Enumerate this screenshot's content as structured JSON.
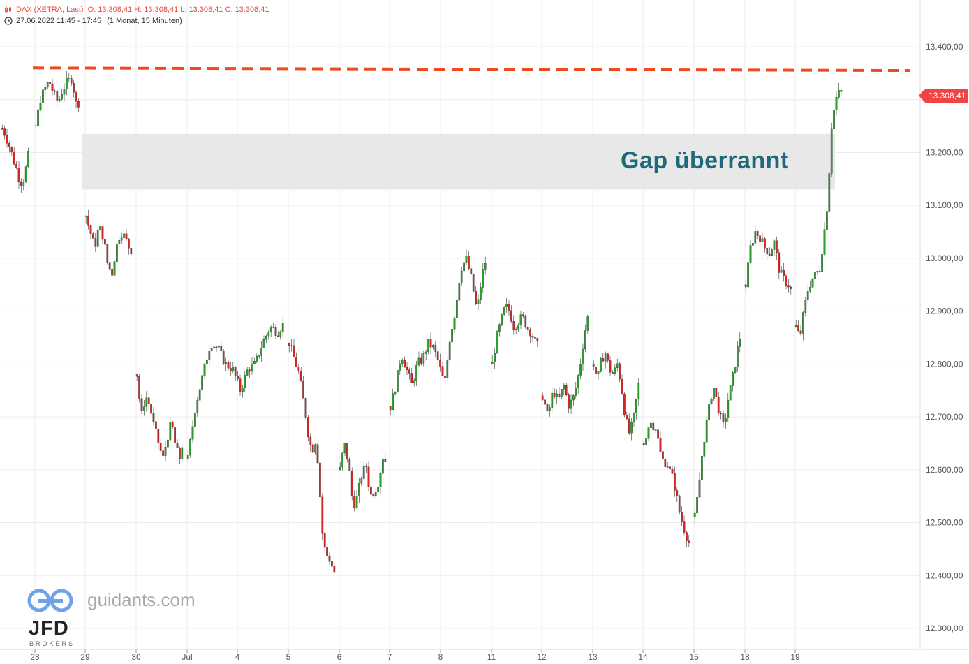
{
  "header": {
    "title": "DAX (XETRA, Last)",
    "ohlc": "O: 13.308,41  H: 13.308,41  L: 13.308,41  C: 13.308,41",
    "range": "27.06.2022 11:45 - 17:45",
    "interval": "(1 Monat, 15 Minuten)"
  },
  "annotation": {
    "text": "Gap überrannt"
  },
  "last_price_label": "13.308,41",
  "branding": {
    "site": "guidants.com",
    "broker": "JFD",
    "broker_sub": "BROKERS"
  },
  "colors": {
    "up": "#2ca02c",
    "down": "#d62728",
    "resistance": "#f04a1f",
    "gap_zone": "#e8e8e8",
    "annotation": "#1f6a7a",
    "grid": "#ececec",
    "axis_text": "#555555"
  },
  "chart_data": {
    "type": "candlestick",
    "x_tick_labels": [
      "28",
      "29",
      "30",
      "Jul",
      "4",
      "5",
      "6",
      "7",
      "8",
      "11",
      "12",
      "13",
      "14",
      "15",
      "18",
      "19"
    ],
    "y_tick_labels": [
      "13.400,00",
      "13.300,00",
      "13.200,00",
      "13.100,00",
      "13.000,00",
      "12.900,00",
      "12.800,00",
      "12.700,00",
      "12.600,00",
      "12.500,00",
      "12.400,00",
      "12.300,00"
    ],
    "y_ticks": [
      13400,
      13300,
      13200,
      13100,
      13000,
      12900,
      12800,
      12700,
      12600,
      12500,
      12400,
      12300
    ],
    "ylim": [
      12240,
      13490
    ],
    "last_price": 13308.41,
    "resistance_line": {
      "start": 13360,
      "end": 13355
    },
    "gap_zone": {
      "low": 13130,
      "high": 13235
    },
    "day_paths": [
      [
        13245,
        13235,
        13220,
        13205,
        13185,
        13170,
        13150,
        13140,
        13160,
        13190,
        13215
      ],
      [
        13250,
        13300,
        13320,
        13335,
        13310,
        13295,
        13320,
        13335,
        13340,
        13290,
        13300
      ],
      [
        13080,
        13050,
        13020,
        13060,
        13040,
        12990,
        12970,
        13020,
        13050,
        13040,
        13020,
        13010
      ],
      [
        12780,
        12700,
        12740,
        12720,
        12680,
        12650,
        12620,
        12660,
        12690,
        12640,
        12620,
        12680
      ],
      [
        12620,
        12720,
        12780,
        12840,
        12830,
        12800,
        12790,
        12750,
        12790,
        12800,
        12840,
        12870,
        12860,
        12880
      ],
      [
        12840,
        12820,
        12800,
        12780,
        12740,
        12700,
        12650,
        12640,
        12660,
        12560,
        12460,
        12440,
        12430,
        12410,
        12400
      ],
      [
        12600,
        12650,
        12610,
        12530,
        12550,
        12590,
        12610,
        12550,
        12560,
        12580,
        12630,
        12600
      ],
      [
        12720,
        12760,
        12820,
        12790,
        12760,
        12800,
        12810,
        12840,
        12830,
        12800,
        12760,
        12850,
        12900,
        12980,
        13000,
        12960,
        12900,
        12970,
        13010
      ],
      [
        12800,
        12850,
        12880,
        12910,
        12900,
        12870,
        12880,
        12890,
        12870,
        12860,
        12840,
        12830
      ],
      [
        12740,
        12700,
        12750,
        12730,
        12760,
        12720,
        12740,
        12790,
        12860,
        12910
      ],
      [
        12800,
        12770,
        12810,
        12820,
        12790,
        12780,
        12800,
        12760,
        12700,
        12670,
        12690,
        12740,
        12790
      ],
      [
        12650,
        12690,
        12680,
        12620,
        12610,
        12580,
        12520,
        12480,
        12450
      ],
      [
        12510,
        12560,
        12630,
        12680,
        12720,
        12760,
        12730,
        12700,
        12680,
        12730,
        12760,
        12800,
        12840,
        12870
      ],
      [
        12950,
        13020,
        13050,
        13040,
        13020,
        13010,
        13030,
        12980,
        12960,
        12950,
        12930
      ],
      [
        12870,
        12850,
        12900,
        12940,
        12960,
        12970,
        12980,
        13040,
        13110,
        13250,
        13300,
        13315,
        13308
      ]
    ]
  }
}
